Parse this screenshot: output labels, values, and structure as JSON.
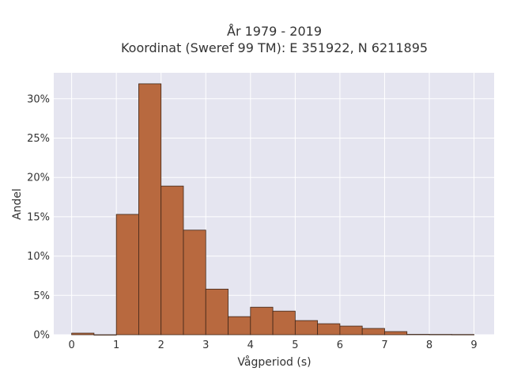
{
  "chart_data": {
    "type": "bar",
    "title_line1": "År 1979 - 2019",
    "title_line2": "Koordinat (Sweref 99 TM): E 351922, N 6211895",
    "xlabel": "Vågperiod (s)",
    "ylabel": "Andel",
    "xlim": [
      -0.4,
      9.45
    ],
    "ylim": [
      0,
      0.333
    ],
    "x_ticks": [
      0,
      1,
      2,
      3,
      4,
      5,
      6,
      7,
      8,
      9
    ],
    "y_ticks": [
      0,
      0.05,
      0.1,
      0.15,
      0.2,
      0.25,
      0.3
    ],
    "y_tick_labels": [
      "0%",
      "5%",
      "10%",
      "15%",
      "20%",
      "25%",
      "30%"
    ],
    "bin_width": 0.5,
    "bins": [
      {
        "x0": 0.0,
        "value": 0.002
      },
      {
        "x0": 0.5,
        "value": 0.0
      },
      {
        "x0": 1.0,
        "value": 0.153
      },
      {
        "x0": 1.5,
        "value": 0.319
      },
      {
        "x0": 2.0,
        "value": 0.189
      },
      {
        "x0": 2.5,
        "value": 0.133
      },
      {
        "x0": 3.0,
        "value": 0.058
      },
      {
        "x0": 3.5,
        "value": 0.023
      },
      {
        "x0": 4.0,
        "value": 0.035
      },
      {
        "x0": 4.5,
        "value": 0.03
      },
      {
        "x0": 5.0,
        "value": 0.018
      },
      {
        "x0": 5.5,
        "value": 0.014
      },
      {
        "x0": 6.0,
        "value": 0.011
      },
      {
        "x0": 6.5,
        "value": 0.008
      },
      {
        "x0": 7.0,
        "value": 0.004
      },
      {
        "x0": 7.5,
        "value": 0.0005
      },
      {
        "x0": 8.0,
        "value": 0.0004
      },
      {
        "x0": 8.5,
        "value": 0.0003
      }
    ],
    "grid": true,
    "colors": {
      "bar_fill": "#b8693f",
      "bar_stroke": "#3f2618",
      "plot_bg": "#e5e5f0",
      "grid": "#ffffff",
      "text": "#333333"
    }
  }
}
